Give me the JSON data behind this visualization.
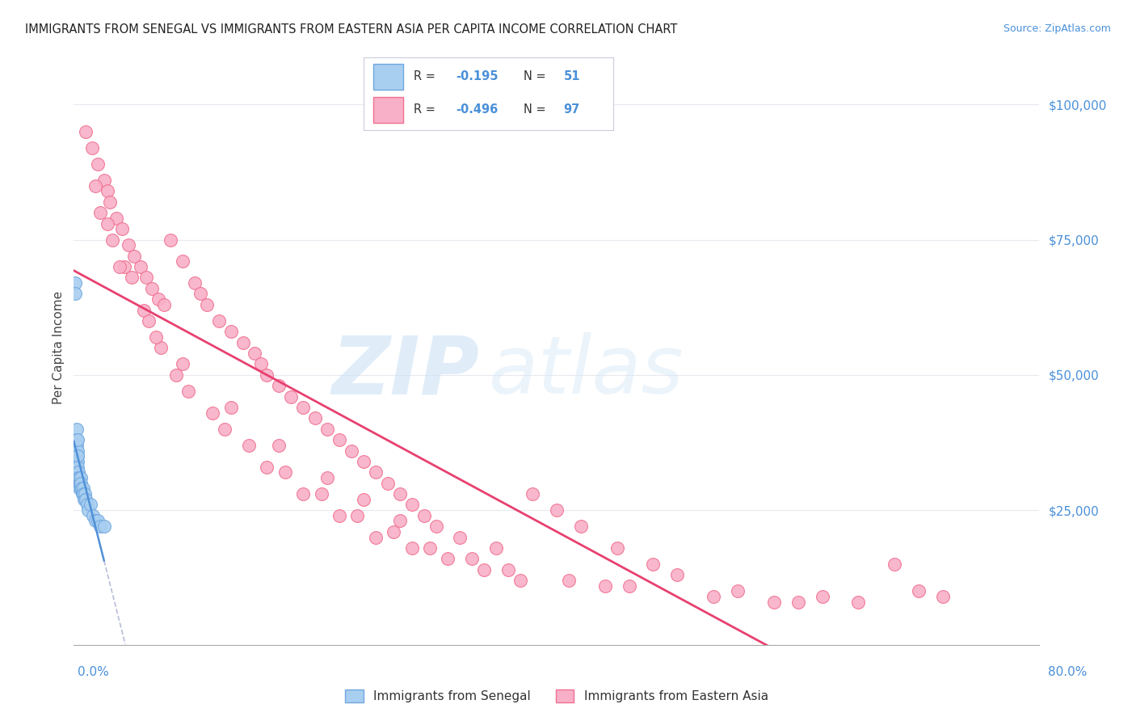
{
  "title": "IMMIGRANTS FROM SENEGAL VS IMMIGRANTS FROM EASTERN ASIA PER CAPITA INCOME CORRELATION CHART",
  "source": "Source: ZipAtlas.com",
  "ylabel": "Per Capita Income",
  "xmin": 0.0,
  "xmax": 80.0,
  "ymin": 0,
  "ymax": 110000,
  "series1_color": "#a8cef0",
  "series1_edge": "#70a8e0",
  "series2_color": "#f8b0c8",
  "series2_edge": "#f07090",
  "series1_label": "Immigrants from Senegal",
  "series2_label": "Immigrants from Eastern Asia",
  "R1": "-0.195",
  "N1": "51",
  "R2": "-0.496",
  "N2": "97",
  "trend1_color": "#5090d8",
  "trend2_color": "#e84070",
  "dashed_color": "#b8bcd8",
  "label_color": "#4a90d9",
  "watermark_zip": "ZIP",
  "watermark_atlas": "atlas",
  "s1x": [
    0.1,
    0.12,
    0.13,
    0.15,
    0.15,
    0.17,
    0.18,
    0.19,
    0.2,
    0.21,
    0.22,
    0.23,
    0.24,
    0.25,
    0.25,
    0.26,
    0.27,
    0.28,
    0.28,
    0.29,
    0.3,
    0.31,
    0.32,
    0.33,
    0.35,
    0.36,
    0.38,
    0.4,
    0.42,
    0.45,
    0.48,
    0.5,
    0.55,
    0.58,
    0.6,
    0.65,
    0.7,
    0.75,
    0.8,
    0.85,
    0.9,
    0.95,
    1.0,
    1.1,
    1.2,
    1.4,
    1.6,
    1.8,
    2.0,
    2.2,
    2.5
  ],
  "s1y": [
    67000,
    65000,
    35000,
    33000,
    30000,
    37000,
    36000,
    35000,
    35000,
    34000,
    40000,
    36000,
    35000,
    34000,
    38000,
    33000,
    37000,
    35000,
    36000,
    34000,
    32000,
    35000,
    33000,
    38000,
    32000,
    30000,
    31000,
    30000,
    29000,
    31000,
    30000,
    30000,
    29000,
    31000,
    30000,
    29000,
    28000,
    29000,
    28000,
    27000,
    28000,
    27000,
    27000,
    26000,
    25000,
    26000,
    24000,
    23000,
    23000,
    22000,
    22000
  ],
  "s2x": [
    1.0,
    1.5,
    2.0,
    2.5,
    2.8,
    3.0,
    3.5,
    4.0,
    4.5,
    5.0,
    5.5,
    6.0,
    6.5,
    7.0,
    7.5,
    8.0,
    9.0,
    10.0,
    10.5,
    11.0,
    12.0,
    13.0,
    14.0,
    15.0,
    15.5,
    16.0,
    17.0,
    18.0,
    19.0,
    20.0,
    21.0,
    22.0,
    23.0,
    24.0,
    25.0,
    26.0,
    27.0,
    28.0,
    29.0,
    30.0,
    32.0,
    35.0,
    38.0,
    40.0,
    42.0,
    45.0,
    48.0,
    50.0,
    55.0,
    60.0,
    65.0,
    68.0,
    70.0,
    2.2,
    3.2,
    4.2,
    5.8,
    7.2,
    8.5,
    11.5,
    14.5,
    17.5,
    20.5,
    23.5,
    26.5,
    29.5,
    33.0,
    36.0,
    41.0,
    46.0,
    53.0,
    62.0,
    1.8,
    2.8,
    4.8,
    6.8,
    9.5,
    12.5,
    16.0,
    19.0,
    22.0,
    25.0,
    28.0,
    31.0,
    34.0,
    37.0,
    44.0,
    58.0,
    72.0,
    3.8,
    6.2,
    9.0,
    13.0,
    17.0,
    21.0,
    24.0,
    27.0
  ],
  "s2y": [
    95000,
    92000,
    89000,
    86000,
    84000,
    82000,
    79000,
    77000,
    74000,
    72000,
    70000,
    68000,
    66000,
    64000,
    63000,
    75000,
    71000,
    67000,
    65000,
    63000,
    60000,
    58000,
    56000,
    54000,
    52000,
    50000,
    48000,
    46000,
    44000,
    42000,
    40000,
    38000,
    36000,
    34000,
    32000,
    30000,
    28000,
    26000,
    24000,
    22000,
    20000,
    18000,
    28000,
    25000,
    22000,
    18000,
    15000,
    13000,
    10000,
    8000,
    8000,
    15000,
    10000,
    80000,
    75000,
    70000,
    62000,
    55000,
    50000,
    43000,
    37000,
    32000,
    28000,
    24000,
    21000,
    18000,
    16000,
    14000,
    12000,
    11000,
    9000,
    9000,
    85000,
    78000,
    68000,
    57000,
    47000,
    40000,
    33000,
    28000,
    24000,
    20000,
    18000,
    16000,
    14000,
    12000,
    11000,
    8000,
    9000,
    70000,
    60000,
    52000,
    44000,
    37000,
    31000,
    27000,
    23000
  ]
}
